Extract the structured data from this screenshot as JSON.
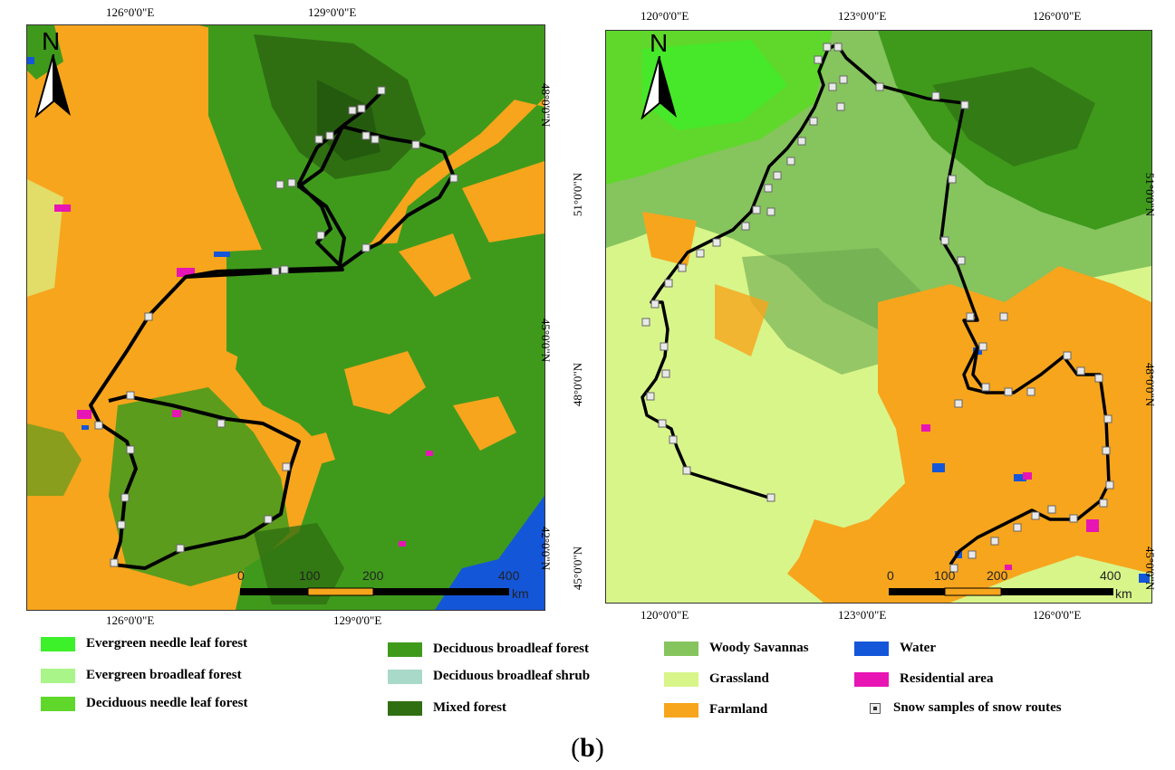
{
  "left_map": {
    "north_label": "N",
    "top_lon": [
      "126°0'0\"E",
      "129°0'0\"E"
    ],
    "bottom_lon": [
      "126°0'0\"E",
      "129°0'0\"E"
    ],
    "right_lat": [
      "48°0'0\"N",
      "45°0'0\"N",
      "42°0'0\"N"
    ],
    "scale": {
      "ticks": [
        "0",
        "100",
        "200",
        "400"
      ],
      "unit": "km"
    }
  },
  "right_map": {
    "north_label": "N",
    "top_lon": [
      "120°0'0\"E",
      "123°0'0\"E",
      "126°0'0\"E"
    ],
    "bottom_lon": [
      "120°0'0\"E",
      "123°0'0\"E",
      "126°0'0\"E"
    ],
    "left_lat": [
      "51°0'0\"N",
      "48°0'0\"N",
      "45°0'0\"N"
    ],
    "right_lat": [
      "51°0'0\"N",
      "48°0'0\"N",
      "45°0'0\"N"
    ],
    "scale": {
      "ticks": [
        "0",
        "100",
        "200",
        "400"
      ],
      "unit": "km"
    }
  },
  "colors": {
    "farmland": "#f7a51c",
    "deciduous_broadleaf_forest": "#3f9a1c",
    "mixed_forest": "#2f6f12",
    "grassland": "#d8f58a",
    "woody_savannas": "#86c45e",
    "water": "#1456d8",
    "residential": "#e815b5",
    "route": "#000000"
  },
  "legend": [
    {
      "label": "Evergreen needle leaf forest",
      "color": "#3cf02a"
    },
    {
      "label": "Evergreen broadleaf forest",
      "color": "#aaf58a"
    },
    {
      "label": "Deciduous needle leaf forest",
      "color": "#5fd82b"
    },
    {
      "label": "Deciduous broadleaf forest",
      "color": "#3f9a1c"
    },
    {
      "label": "Deciduous broadleaf shrub",
      "color": "#a9d9c8"
    },
    {
      "label": "Mixed forest",
      "color": "#2f6f12"
    },
    {
      "label": "Woody Savannas",
      "color": "#86c45e"
    },
    {
      "label": "Grassland",
      "color": "#d8f58a"
    },
    {
      "label": "Farmland",
      "color": "#f7a51c"
    },
    {
      "label": "Water",
      "color": "#1456d8"
    },
    {
      "label": "Residential area",
      "color": "#e815b5"
    },
    {
      "label": "Snow samples of snow routes",
      "icon": "snow-sample-icon"
    }
  ],
  "caption": "b"
}
